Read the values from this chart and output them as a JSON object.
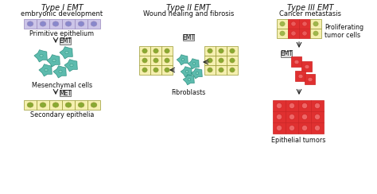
{
  "bg_color": "#ffffff",
  "title1": "Type I EMT",
  "subtitle1": "embryonic development",
  "title2": "Type II EMT",
  "subtitle2": "Wound healing and fibrosis",
  "title3": "Type III EMT",
  "subtitle3": "Cancer metastasis",
  "label_primitive": "Primitive epithelium",
  "label_mesenchymal": "Mesenchymal cells",
  "label_secondary": "Secondary epithelia",
  "label_fibroblasts": "Fibroblasts",
  "label_proliferating": "Proliferating\ntumor cells",
  "label_epithelial": "Epithelial tumors",
  "label_emt": "EMT",
  "label_met": "MET",
  "cell_yellow": "#f5f0b0",
  "cell_purple": "#ccc5e8",
  "cell_red_dark": "#e03030",
  "cell_red_mid": "#ee6666",
  "cell_red_light": "#f5aaaa",
  "cell_teal": "#40b0a0",
  "cell_teal_light": "#80d0c0",
  "cell_nucleus_blue": "#4499bb",
  "cell_nucleus_yellow": "#88aa33",
  "cell_nucleus_purple": "#8888cc",
  "cell_border_yellow": "#999933",
  "cell_border_purple": "#9988bb",
  "cell_border_red": "#cc2222",
  "cell_border_teal": "#228877",
  "box_bg": "#dddddd",
  "box_border": "#777777",
  "arrow_color": "#222222",
  "text_color": "#111111",
  "title_fontsize": 7.0,
  "subtitle_fontsize": 6.0,
  "label_fontsize": 5.8,
  "emt_fontsize": 5.5
}
